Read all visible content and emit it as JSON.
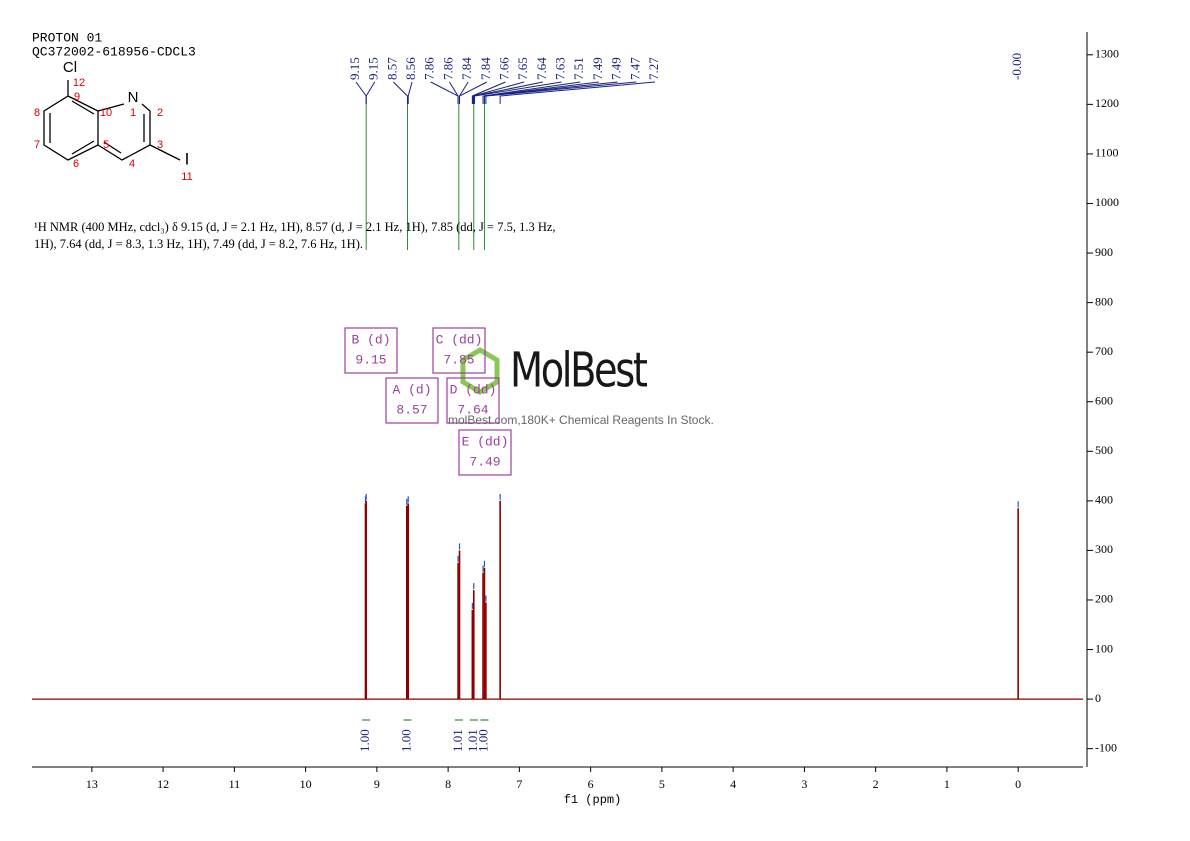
{
  "header": {
    "lines": [
      "PROTON 01",
      "QC372002-618956-CDCL3"
    ]
  },
  "structure": {
    "atoms": [
      "Cl",
      "12",
      "9",
      "N",
      "1",
      "2",
      "8",
      "10",
      "3",
      "7",
      "5",
      "4",
      "6",
      "11",
      "I"
    ]
  },
  "description": "¹H NMR (400 MHz, cdcl₃) δ 9.15 (d, J = 2.1 Hz, 1H), 8.57 (d, J = 2.1 Hz, 1H), 7.85 (dd, J = 7.5, 1.3 Hz, 1H), 7.64 (dd, J = 8.3, 1.3 Hz, 1H), 7.49 (dd, J = 8.2, 7.6 Hz, 1H).",
  "watermark": {
    "logo": "MolBest",
    "tagline": "molBest.com,180K+ Chemical Reagents In Stock."
  },
  "chart_data": {
    "type": "spectrum",
    "x_label": "f1 (ppm)",
    "xlim": [
      13.84,
      -0.91
    ],
    "ylim": [
      -137,
      1346
    ],
    "xticks": [
      0,
      1,
      2,
      3,
      4,
      5,
      6,
      7,
      8,
      9,
      10,
      11,
      12,
      13
    ],
    "yticks": [
      -100,
      0,
      100,
      200,
      300,
      400,
      500,
      600,
      700,
      800,
      900,
      1000,
      1100,
      1200,
      1300
    ],
    "color": "#8b0000",
    "x": [
      9.16,
      9.15,
      8.58,
      8.56,
      7.86,
      7.84,
      7.66,
      7.64,
      7.51,
      7.49,
      7.47,
      7.27,
      0
    ],
    "values": [
      395,
      400,
      390,
      395,
      275,
      300,
      180,
      220,
      255,
      265,
      195,
      400,
      385
    ],
    "peak_labels": [
      9.15,
      9.15,
      8.57,
      8.56,
      7.86,
      7.86,
      7.84,
      7.84,
      7.66,
      7.65,
      7.64,
      7.63,
      7.51,
      7.49,
      7.49,
      7.47,
      7.27,
      {
        "value": 0,
        "label": "-0.00"
      }
    ],
    "multiplets": [
      {
        "label": "B (d)",
        "shift": 9.15
      },
      {
        "label": "A (d)",
        "shift": 8.57
      },
      {
        "label": "C (dd)",
        "shift": 7.85
      },
      {
        "label": "D (dd)",
        "shift": 7.64
      },
      {
        "label": "E (dd)",
        "shift": 7.49
      }
    ],
    "integrals": {
      "x": [
        9.15,
        8.57,
        7.85,
        7.64,
        7.49
      ],
      "values": [
        1,
        1,
        1.01,
        1.01,
        1
      ],
      "value_labels": [
        "1.00",
        "1.00",
        "1.01",
        "1.01",
        "1.00"
      ]
    }
  }
}
